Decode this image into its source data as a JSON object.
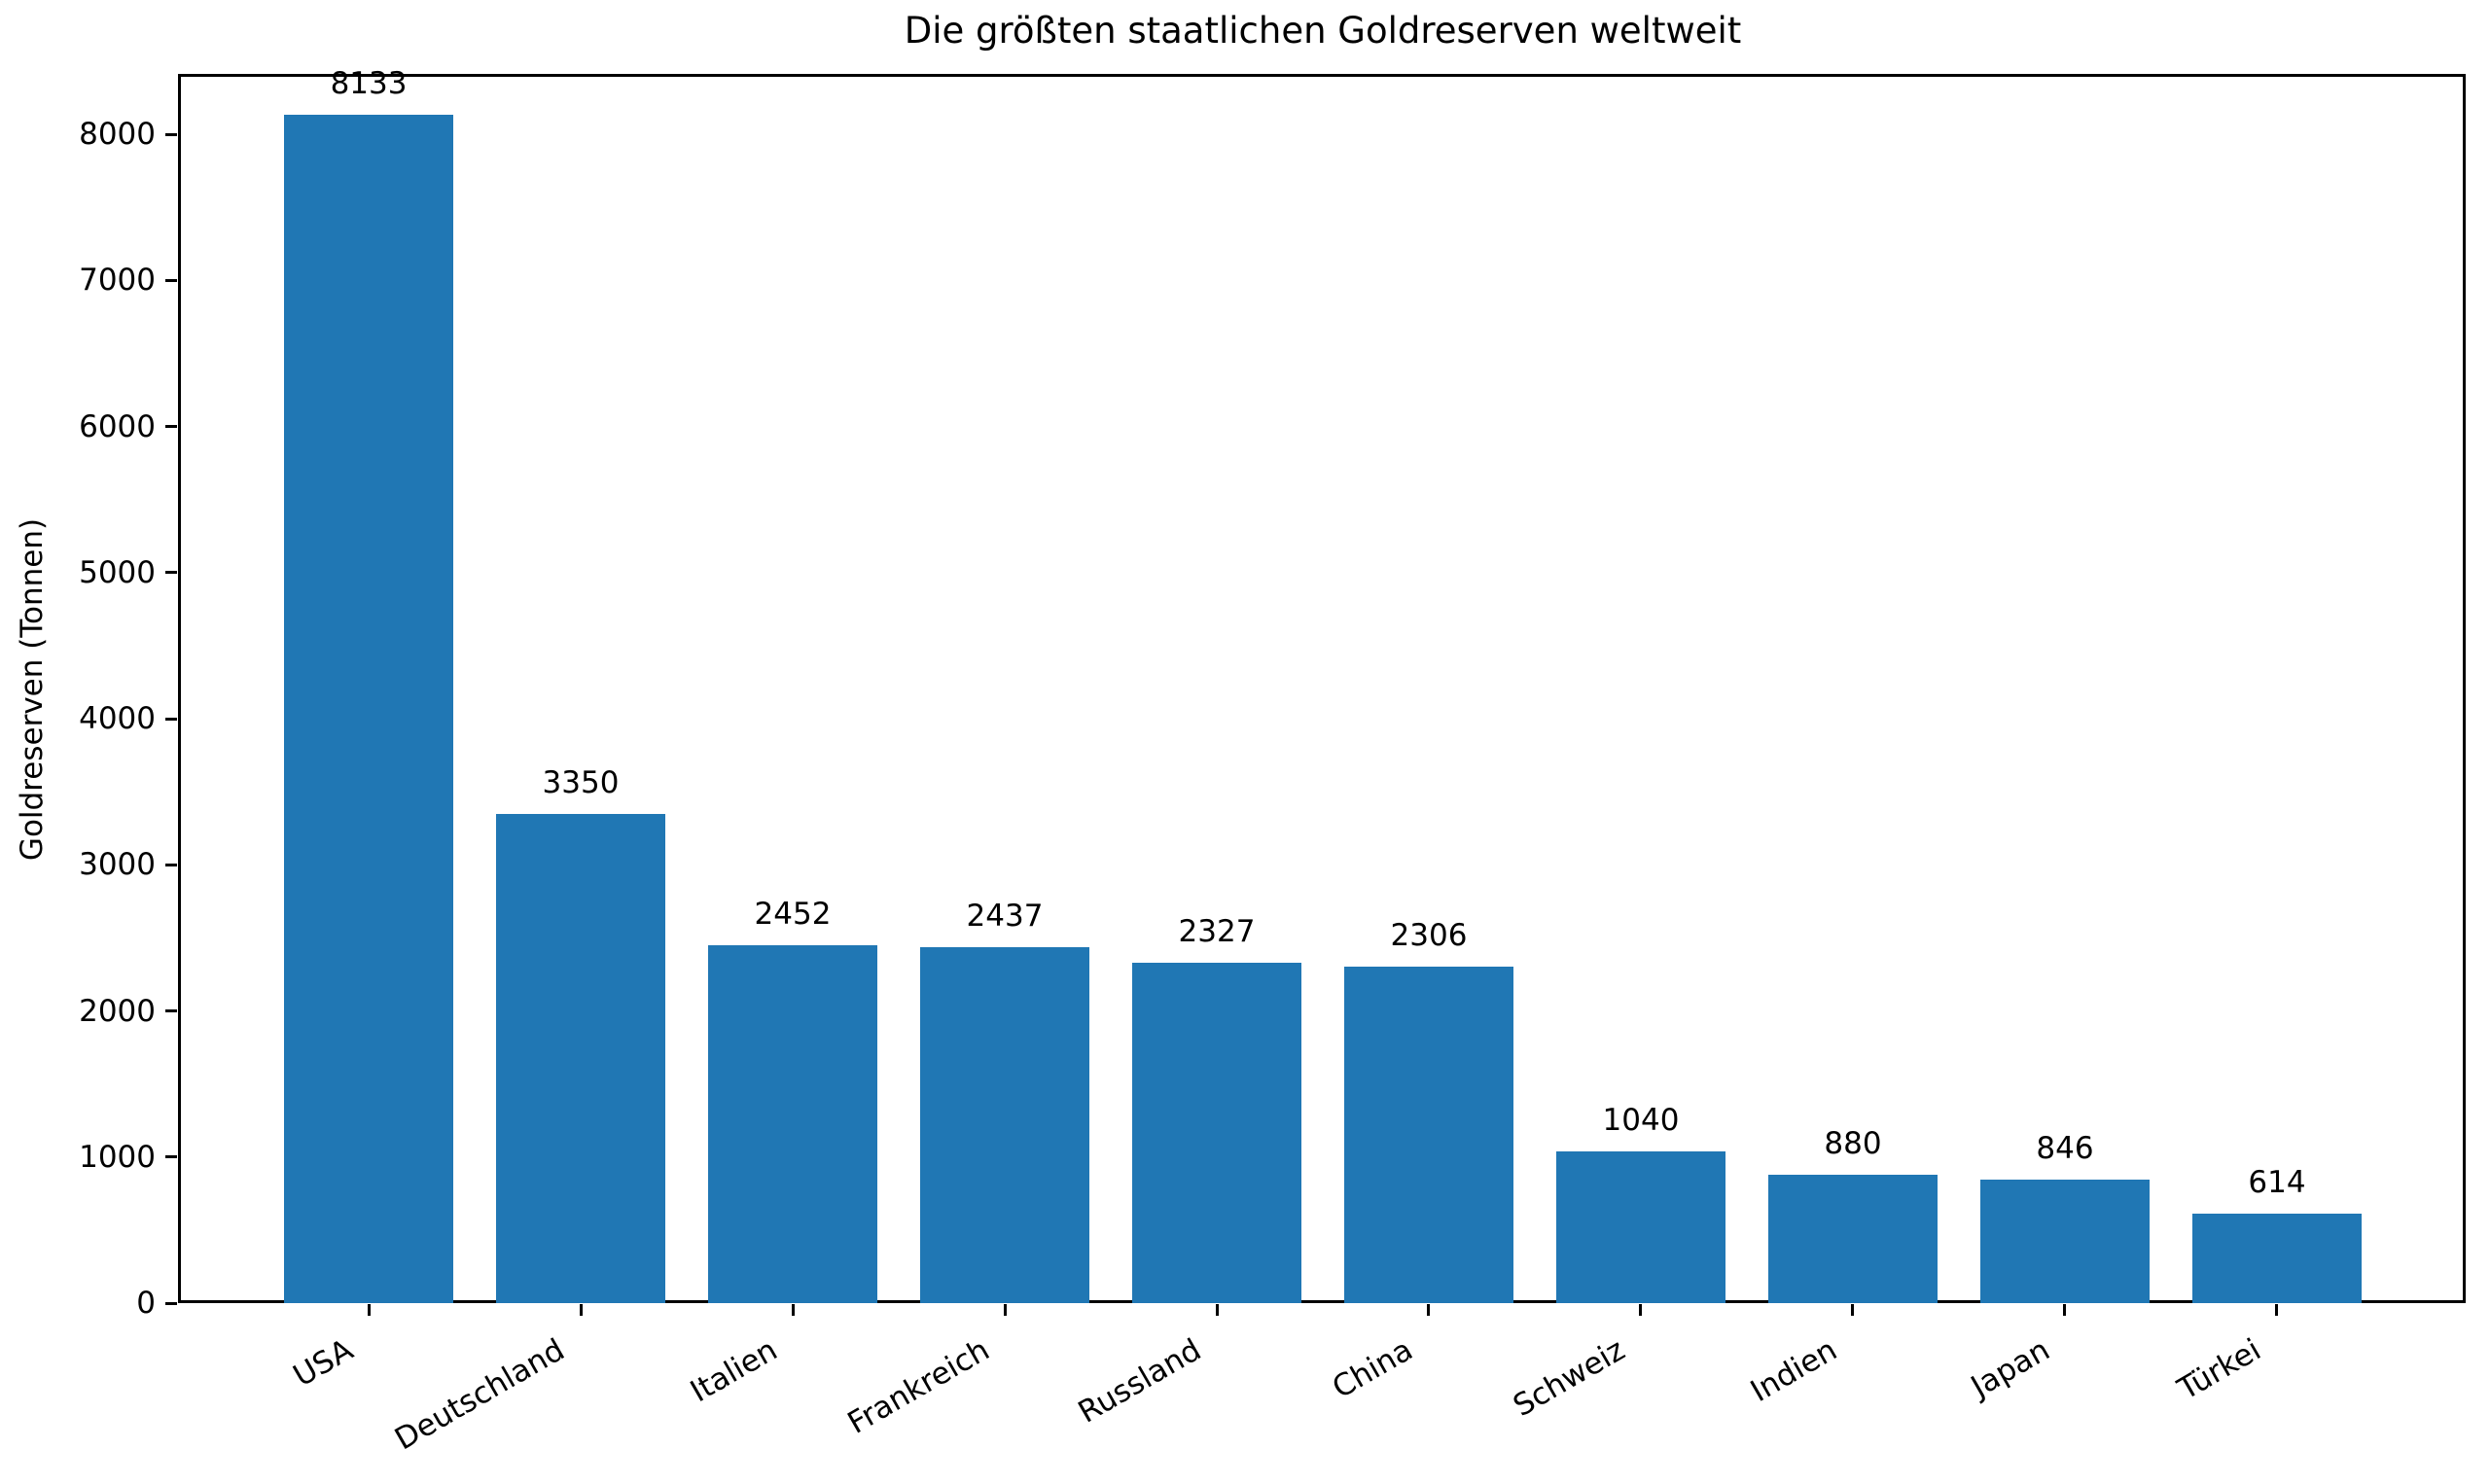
{
  "chart_data": {
    "type": "bar",
    "title": "Die größten staatlichen Goldreserven weltweit",
    "xlabel": "",
    "ylabel": "Goldreserven (Tonnen)",
    "categories": [
      "USA",
      "Deutschland",
      "Italien",
      "Frankreich",
      "Russland",
      "China",
      "Schweiz",
      "Indien",
      "Japan",
      "Türkei"
    ],
    "values": [
      8133,
      3350,
      2452,
      2437,
      2327,
      2306,
      1040,
      880,
      846,
      614
    ],
    "value_labels": [
      "8133",
      "3350",
      "2452",
      "2437",
      "2327",
      "2306",
      "1040",
      "880",
      "846",
      "614"
    ],
    "yticks": [
      0,
      1000,
      2000,
      3000,
      4000,
      5000,
      6000,
      7000,
      8000
    ],
    "ylim": [
      0,
      8400
    ],
    "bar_color": "#2077b4",
    "axis_color": "#000000",
    "background_color": "#ffffff",
    "grid": false,
    "legend": null,
    "x_tick_rotation_deg": 30
  }
}
